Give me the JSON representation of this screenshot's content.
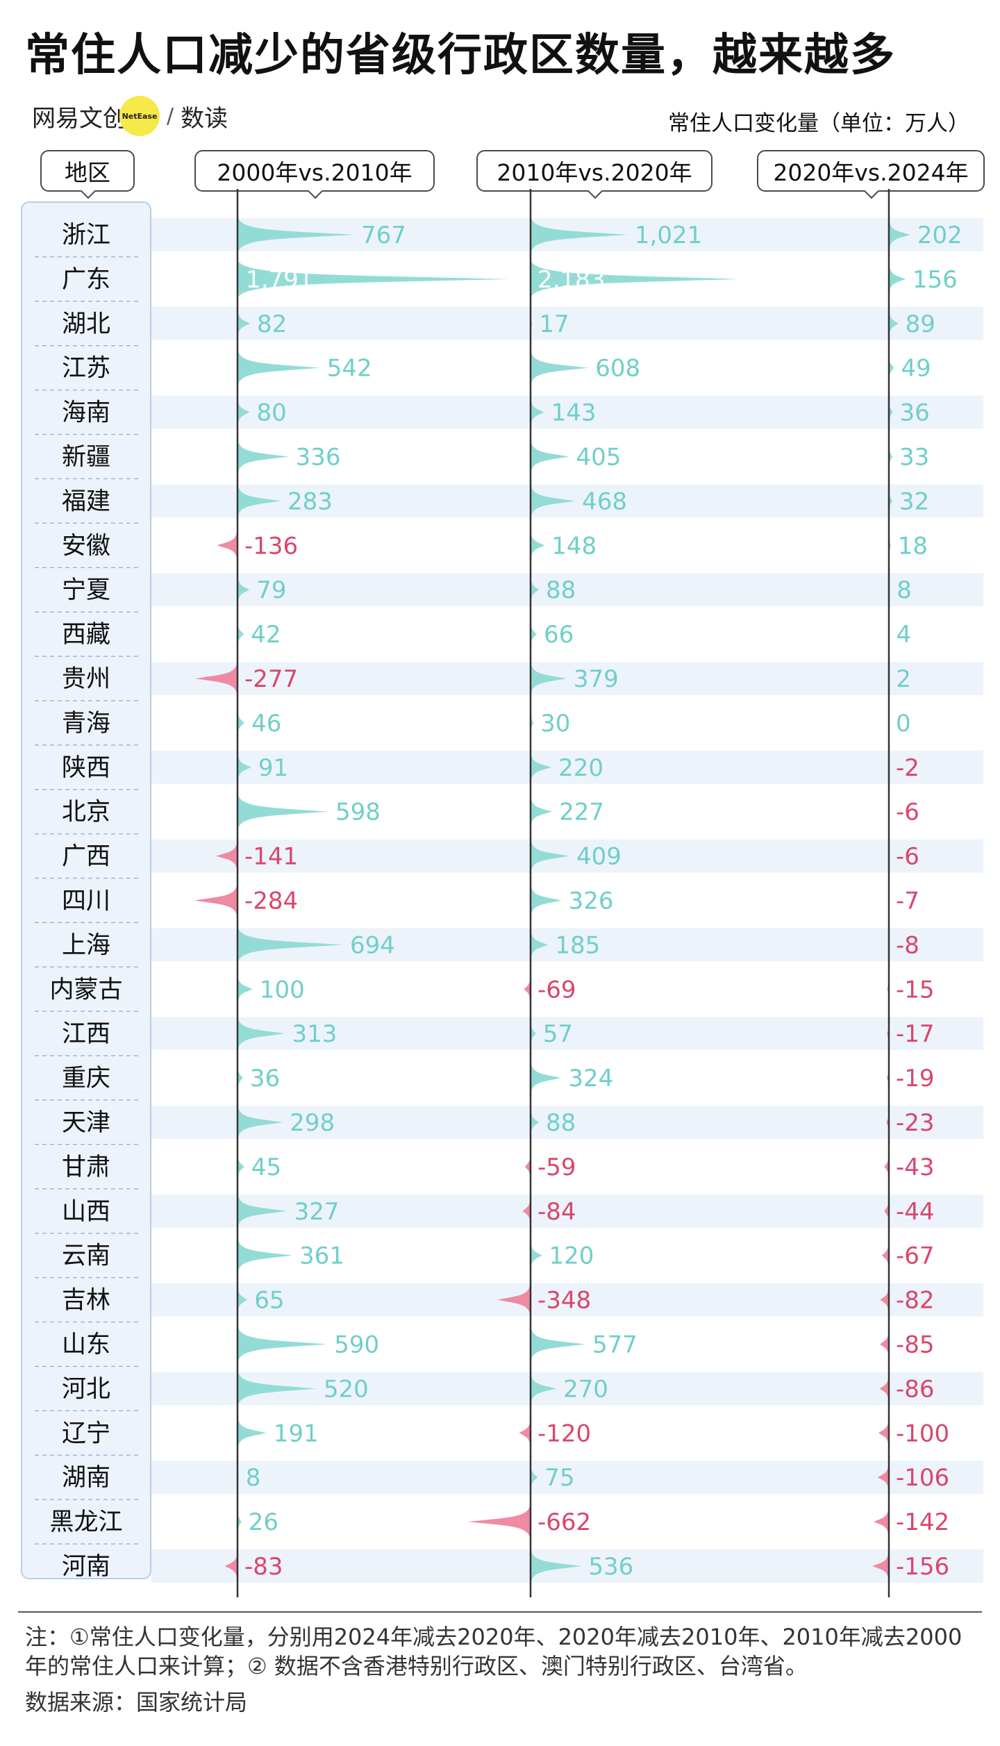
{
  "title": "常住人口减少的省级行政区数量，越来越多",
  "brand": {
    "name": "网易文创",
    "badge": "NetEase",
    "sub": "数读"
  },
  "unit_label": "常住人口变化量（单位：万人）",
  "region_header": "地区",
  "colors": {
    "positive": "#93dcd6",
    "positive_text": "#6fcfc9",
    "negative": "#ee8aa2",
    "negative_text": "#d9466c",
    "stripe": "#edf3fb",
    "axis": "#333333"
  },
  "chart_data": {
    "type": "bar",
    "categories": [
      "浙江",
      "广东",
      "湖北",
      "江苏",
      "海南",
      "新疆",
      "福建",
      "安徽",
      "宁夏",
      "西藏",
      "贵州",
      "青海",
      "陕西",
      "北京",
      "广西",
      "四川",
      "上海",
      "内蒙古",
      "江西",
      "重庆",
      "天津",
      "甘肃",
      "山西",
      "云南",
      "吉林",
      "山东",
      "河北",
      "辽宁",
      "湖南",
      "黑龙江",
      "河南"
    ],
    "series": [
      {
        "name": "2000年vs.2010年",
        "values": [
          767,
          1791,
          82,
          542,
          80,
          336,
          283,
          -136,
          79,
          42,
          -277,
          46,
          91,
          598,
          -141,
          -284,
          694,
          100,
          313,
          36,
          298,
          45,
          327,
          361,
          65,
          590,
          520,
          191,
          8,
          26,
          -83
        ]
      },
      {
        "name": "2010年vs.2020年",
        "values": [
          1021,
          2183,
          17,
          608,
          143,
          405,
          468,
          148,
          88,
          66,
          379,
          30,
          220,
          227,
          409,
          326,
          185,
          -69,
          57,
          324,
          88,
          -59,
          -84,
          120,
          -348,
          577,
          270,
          -120,
          75,
          -662,
          536
        ]
      },
      {
        "name": "2020年vs.2024年",
        "values": [
          202,
          156,
          89,
          49,
          36,
          33,
          32,
          18,
          8,
          4,
          2,
          0,
          -2,
          -6,
          -6,
          -7,
          -8,
          -15,
          -17,
          -19,
          -23,
          -43,
          -44,
          -67,
          -82,
          -85,
          -86,
          -100,
          -106,
          -142,
          -156
        ]
      }
    ],
    "value_labels": [
      [
        "767",
        "1,791",
        "82",
        "542",
        "80",
        "336",
        "283",
        "-136",
        "79",
        "42",
        "-277",
        "46",
        "91",
        "598",
        "-141",
        "-284",
        "694",
        "100",
        "313",
        "36",
        "298",
        "45",
        "327",
        "361",
        "65",
        "590",
        "520",
        "191",
        "8",
        "26",
        "-83"
      ],
      [
        "1,021",
        "2,183",
        "17",
        "608",
        "143",
        "405",
        "468",
        "148",
        "88",
        "66",
        "379",
        "30",
        "220",
        "227",
        "409",
        "326",
        "185",
        "-69",
        "57",
        "324",
        "88",
        "-59",
        "-84",
        "120",
        "-348",
        "577",
        "270",
        "-120",
        "75",
        "-662",
        "536"
      ],
      [
        "202",
        "156",
        "89",
        "49",
        "36",
        "33",
        "32",
        "18",
        "8",
        "4",
        "2",
        "0",
        "-2",
        "-6",
        "-6",
        "-7",
        "-8",
        "-15",
        "-17",
        "-19",
        "-23",
        "-43",
        "-44",
        "-67",
        "-82",
        "-85",
        "-86",
        "-100",
        "-106",
        "-142",
        "-156"
      ]
    ]
  },
  "note": "注：①常住人口变化量，分别用2024年减去2020年、2020年减去2010年、2010年减去2000年的常住人口来计算；② 数据不含香港特别行政区、澳门特别行政区、台湾省。",
  "source": "数据来源：国家统计局"
}
